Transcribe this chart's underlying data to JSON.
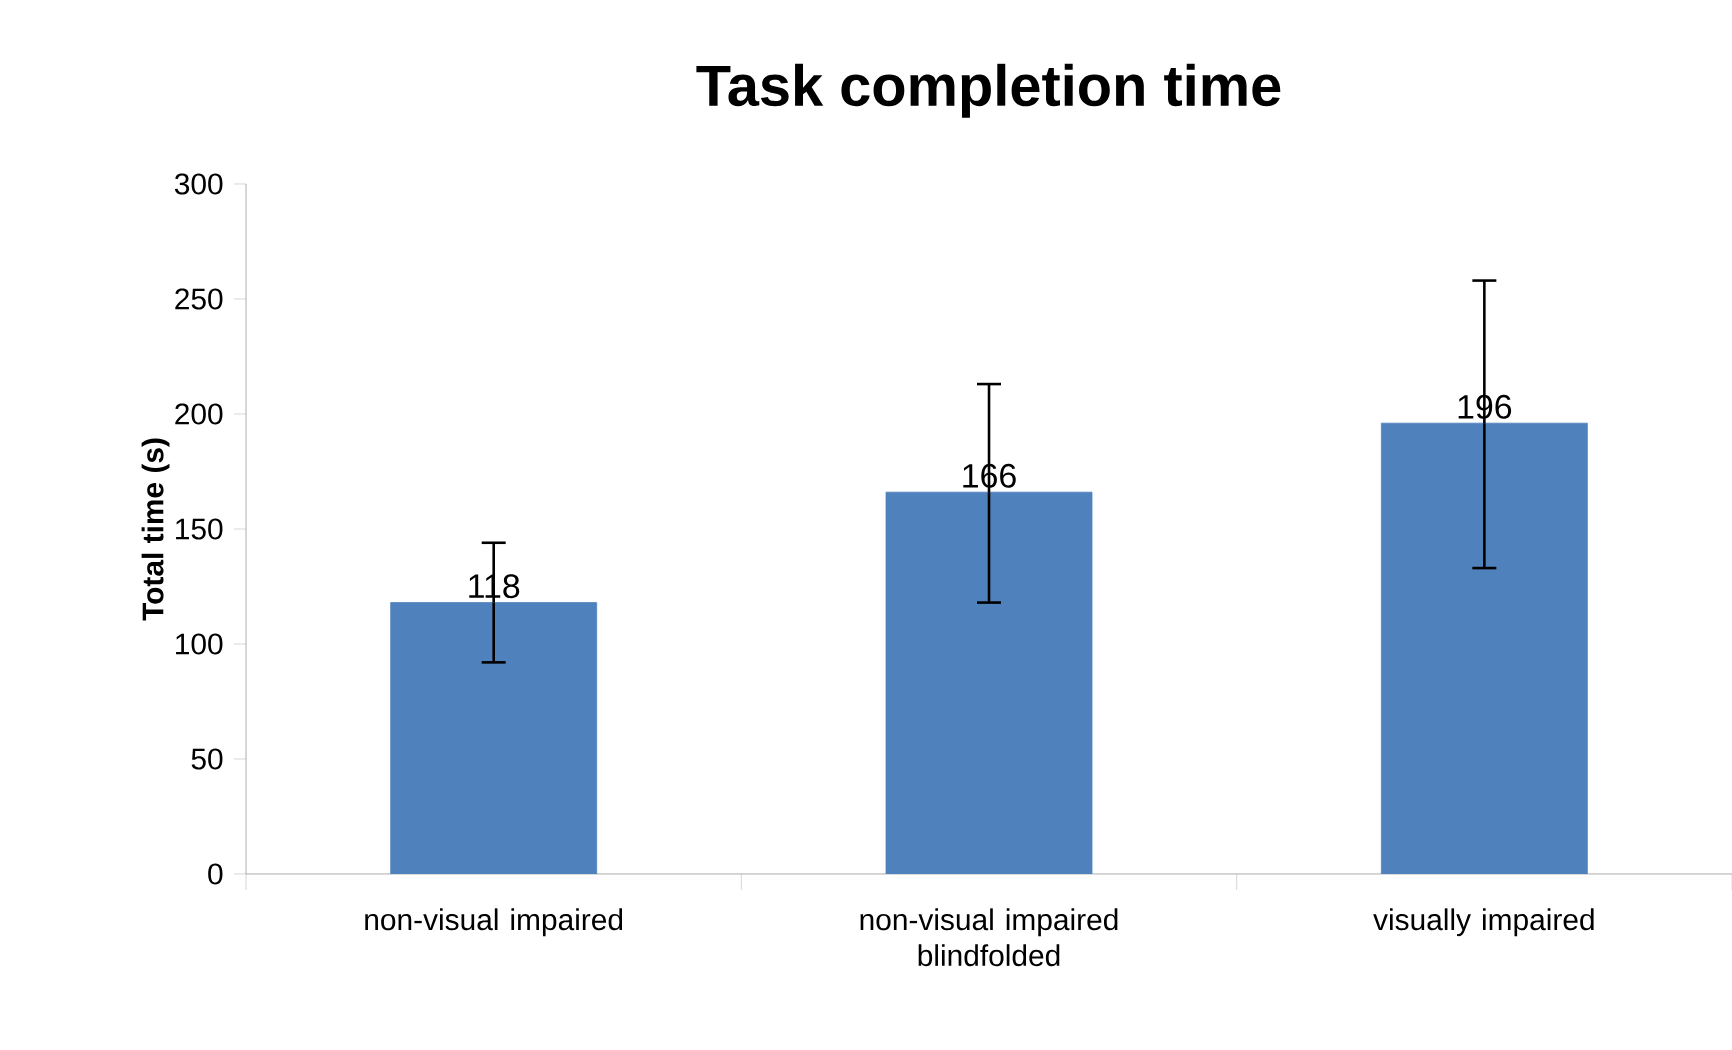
{
  "chart_data": {
    "type": "bar",
    "title": "Task completion time",
    "ylabel": "Total time (s)",
    "categories": [
      "non-visual impaired",
      "non-visual impaired blindfolded",
      "visually impaired"
    ],
    "values": [
      118,
      166,
      196
    ],
    "errors": [
      [
        92,
        144
      ],
      [
        118,
        213
      ],
      [
        133,
        258
      ]
    ],
    "color": "#4f81bd",
    "ylim": [
      0,
      300
    ],
    "yticks": [
      0,
      50,
      100,
      150,
      200,
      250,
      300
    ],
    "data_labels": true,
    "grid": false
  }
}
